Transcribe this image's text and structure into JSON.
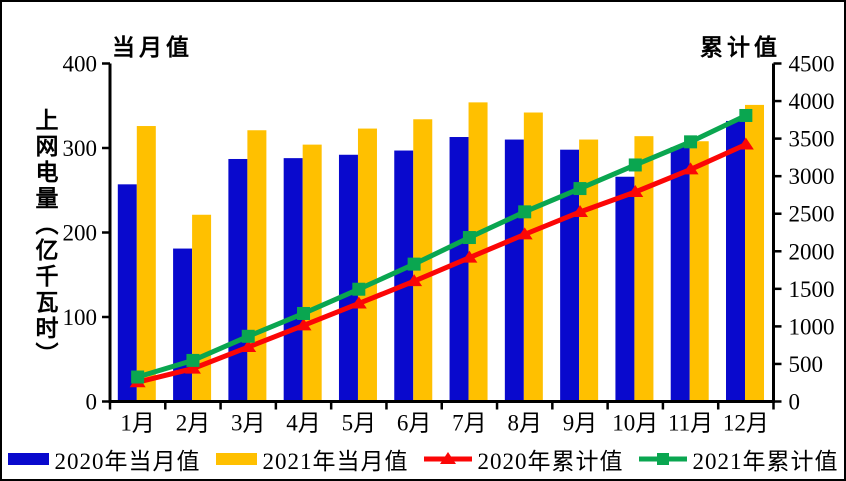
{
  "chart_data": {
    "type": "bar+line",
    "title": "",
    "y_axis_label": "上网电量（亿千瓦时）",
    "categories": [
      "1月",
      "2月",
      "3月",
      "4月",
      "5月",
      "6月",
      "7月",
      "8月",
      "9月",
      "10月",
      "11月",
      "12月"
    ],
    "left_axis": {
      "title": "当月值",
      "min": 0,
      "max": 400,
      "ticks": [
        0,
        100,
        200,
        300,
        400
      ]
    },
    "right_axis": {
      "title": "累计值",
      "min": 0,
      "max": 4500,
      "ticks": [
        0,
        500,
        1000,
        1500,
        2000,
        2500,
        3000,
        3500,
        4000,
        4500
      ]
    },
    "bar_series": [
      {
        "name": "2020年当月值",
        "axis": "left",
        "color": "#0909CD",
        "values": [
          257,
          181,
          287,
          288,
          292,
          297,
          313,
          310,
          298,
          266,
          301,
          332
        ]
      },
      {
        "name": "2021年当月值",
        "axis": "left",
        "color": "#FFC000",
        "values": [
          326,
          221,
          321,
          304,
          323,
          334,
          354,
          342,
          310,
          314,
          308,
          351
        ]
      }
    ],
    "line_series": [
      {
        "name": "2020年累计值",
        "axis": "right",
        "color": "#FB0606",
        "marker": "triangle",
        "values": [
          257,
          438,
          725,
          1013,
          1305,
          1602,
          1915,
          2225,
          2523,
          2789,
          3090,
          3422
        ]
      },
      {
        "name": "2021年累计值",
        "axis": "right",
        "color": "#0AA650",
        "marker": "square",
        "values": [
          326,
          547,
          868,
          1172,
          1495,
          1829,
          2183,
          2525,
          2835,
          3149,
          3457,
          3808
        ]
      }
    ],
    "legend_position": "bottom",
    "grid": false,
    "colors": {
      "axis": "#000000",
      "background": "#FFFFFF",
      "border": "#000000"
    }
  }
}
